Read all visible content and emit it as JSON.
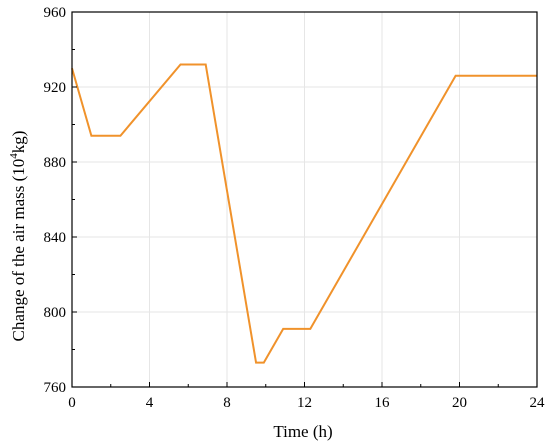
{
  "chart_data": {
    "type": "line",
    "title": "",
    "xlabel": "Time (h)",
    "ylabel": {
      "prefix": "Change of the air mass (10",
      "sup": "4",
      "suffix": "kg)"
    },
    "xlim": [
      0,
      24
    ],
    "ylim": [
      760,
      960
    ],
    "xticks": [
      0,
      4,
      8,
      12,
      16,
      20,
      24
    ],
    "yticks": [
      760,
      800,
      840,
      880,
      920,
      960
    ],
    "grid": true,
    "legend": "none",
    "series": [
      {
        "color": "#f0922b",
        "x": [
          0,
          1.0,
          2.5,
          5.6,
          6.9,
          9.5,
          9.9,
          10.9,
          12.3,
          19.8,
          24
        ],
        "y": [
          930,
          894,
          894,
          932,
          932,
          773,
          773,
          791,
          791,
          926,
          926
        ]
      }
    ]
  }
}
